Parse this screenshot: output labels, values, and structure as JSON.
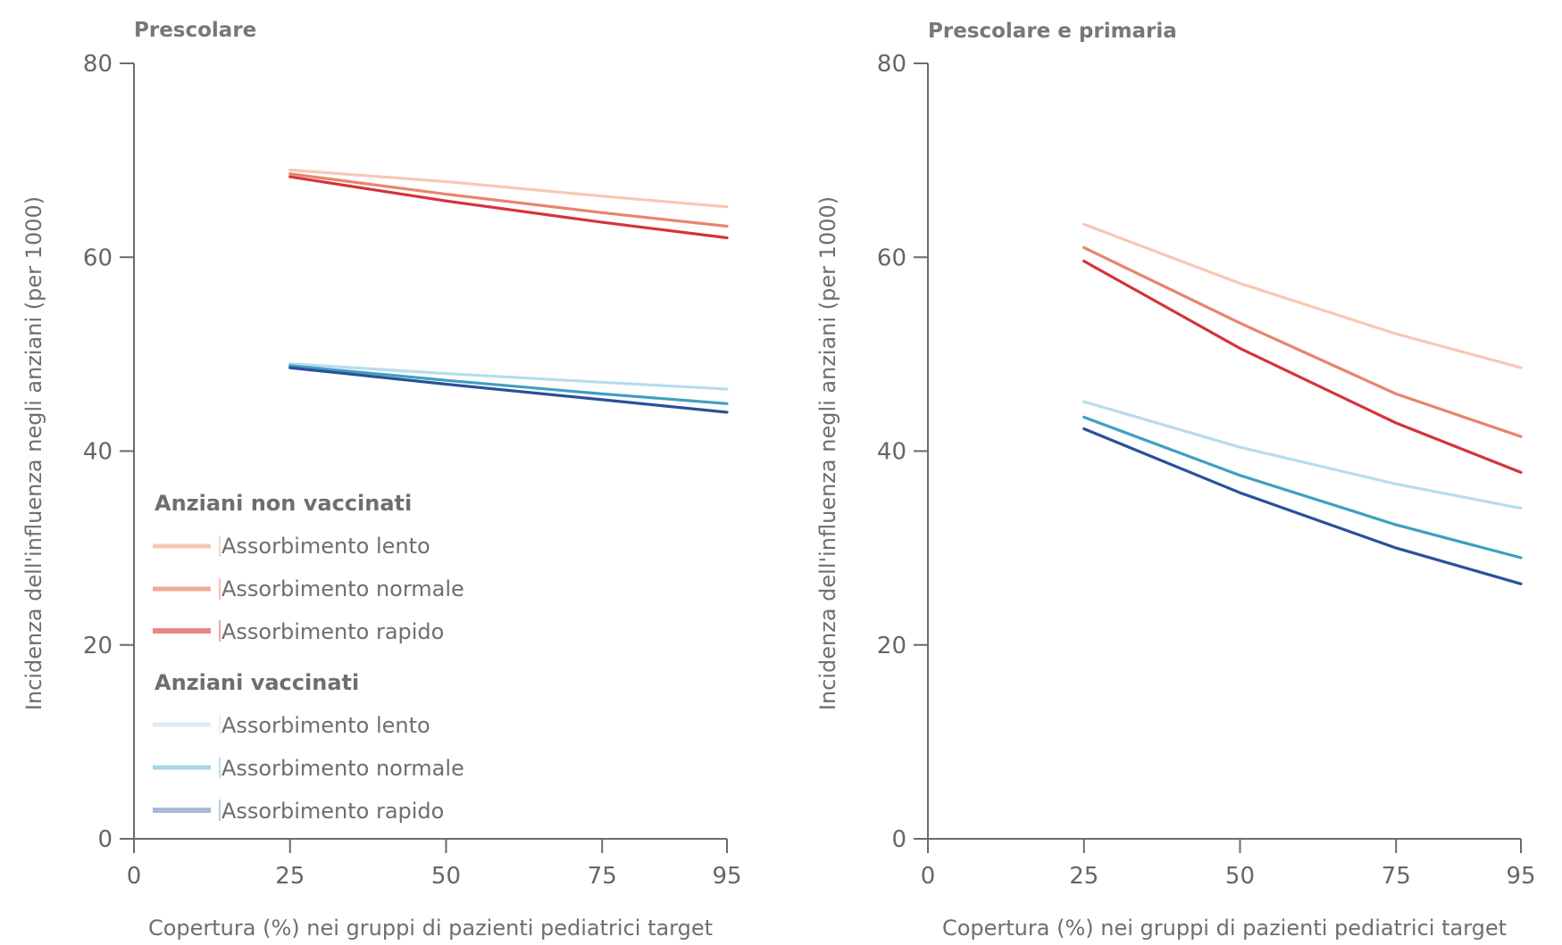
{
  "colors": {
    "axis": "#6b6b6b",
    "unvaccinated_slow": "#f6c8b4",
    "unvaccinated_normal": "#e9836e",
    "unvaccinated_fast": "#d5333a",
    "vaccinated_slow": "#b6dcee",
    "vaccinated_normal": "#3f9fc2",
    "vaccinated_fast": "#2b4f9c"
  },
  "chart_data": [
    {
      "type": "line",
      "title": "Prescolare",
      "xlabel": "Copertura (%) nei gruppi di pazienti pediatrici target",
      "ylabel": "Incidenza dell'influenza negli anziani (per 1000)",
      "xlim": [
        0,
        95
      ],
      "ylim": [
        0,
        80
      ],
      "xticks": [
        0,
        25,
        50,
        75,
        95
      ],
      "yticks": [
        0,
        20,
        40,
        60,
        80
      ],
      "x": [
        25,
        50,
        75,
        95
      ],
      "legend": {
        "position": "bottom-left",
        "groups": [
          {
            "title": "Anziani non vaccinati",
            "entries": [
              {
                "label": "Assorbimento lento",
                "color": "#f6c8b4"
              },
              {
                "label": "Assorbimento normale",
                "color": "#e9836e"
              },
              {
                "label": "Assorbimento rapido",
                "color": "#d5333a"
              }
            ]
          },
          {
            "title": "Anziani vaccinati",
            "entries": [
              {
                "label": "Assorbimento lento",
                "color": "#b6dcee"
              },
              {
                "label": "Assorbimento normale",
                "color": "#3f9fc2"
              },
              {
                "label": "Assorbimento rapido",
                "color": "#2b4f9c"
              }
            ]
          }
        ]
      },
      "series": [
        {
          "color": "#f6c8b4",
          "values": [
            69.0,
            67.8,
            66.3,
            65.2
          ]
        },
        {
          "color": "#e9836e",
          "values": [
            68.6,
            66.5,
            64.6,
            63.2
          ]
        },
        {
          "color": "#d5333a",
          "values": [
            68.3,
            65.8,
            63.6,
            62.0
          ]
        },
        {
          "color": "#b6dcee",
          "values": [
            49.0,
            48.0,
            47.1,
            46.4
          ]
        },
        {
          "color": "#3f9fc2",
          "values": [
            48.8,
            47.3,
            45.9,
            44.9
          ]
        },
        {
          "color": "#2b4f9c",
          "values": [
            48.6,
            46.9,
            45.3,
            44.0
          ]
        }
      ]
    },
    {
      "type": "line",
      "title": "Prescolare e primaria",
      "xlabel": "Copertura (%) nei gruppi di pazienti pediatrici target",
      "ylabel": "Incidenza dell'influenza negli anziani (per 1000)",
      "xlim": [
        0,
        95
      ],
      "ylim": [
        0,
        80
      ],
      "xticks": [
        0,
        25,
        50,
        75,
        95
      ],
      "yticks": [
        0,
        20,
        40,
        60,
        80
      ],
      "x": [
        25,
        50,
        75,
        95
      ],
      "series": [
        {
          "color": "#f6c8b4",
          "values": [
            63.4,
            57.3,
            52.1,
            48.6
          ]
        },
        {
          "color": "#e9836e",
          "values": [
            61.0,
            53.2,
            45.9,
            41.5
          ]
        },
        {
          "color": "#d5333a",
          "values": [
            59.6,
            50.6,
            42.9,
            37.8
          ]
        },
        {
          "color": "#b6dcee",
          "values": [
            45.1,
            40.4,
            36.6,
            34.1
          ]
        },
        {
          "color": "#3f9fc2",
          "values": [
            43.5,
            37.5,
            32.4,
            29.0
          ]
        },
        {
          "color": "#2b4f9c",
          "values": [
            42.3,
            35.7,
            30.0,
            26.3
          ]
        }
      ]
    }
  ]
}
